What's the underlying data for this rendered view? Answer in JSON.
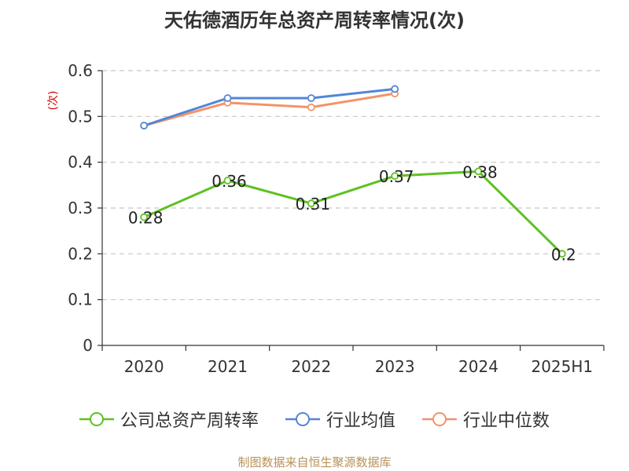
{
  "title": "天佑德酒历年总资产周转率情况(次)",
  "source_note": "制图数据来自恒生聚源数据库",
  "chart_data": {
    "type": "line",
    "title": "天佑德酒历年总资产周转率情况(次)",
    "ylabel": "(次)",
    "categories": [
      "2020",
      "2021",
      "2022",
      "2023",
      "2024",
      "2025H1"
    ],
    "ylim": [
      0,
      0.6
    ],
    "yticks": [
      0,
      0.1,
      0.2,
      0.3,
      0.4,
      0.5,
      0.6
    ],
    "grid": true,
    "legend_position": "bottom",
    "series": [
      {
        "name": "公司总资产周转率",
        "color": "#5ec122",
        "values": [
          0.28,
          0.36,
          0.31,
          0.37,
          0.38,
          0.2
        ],
        "data_labels": [
          "0.28",
          "0.36",
          "0.31",
          "0.37",
          "0.38",
          "0.2"
        ]
      },
      {
        "name": "行业均值",
        "color": "#5286d6",
        "values": [
          0.48,
          0.54,
          0.54,
          0.56,
          null,
          null
        ]
      },
      {
        "name": "行业中位数",
        "color": "#f3936a",
        "values": [
          0.48,
          0.53,
          0.52,
          0.55,
          null,
          null
        ]
      }
    ]
  }
}
